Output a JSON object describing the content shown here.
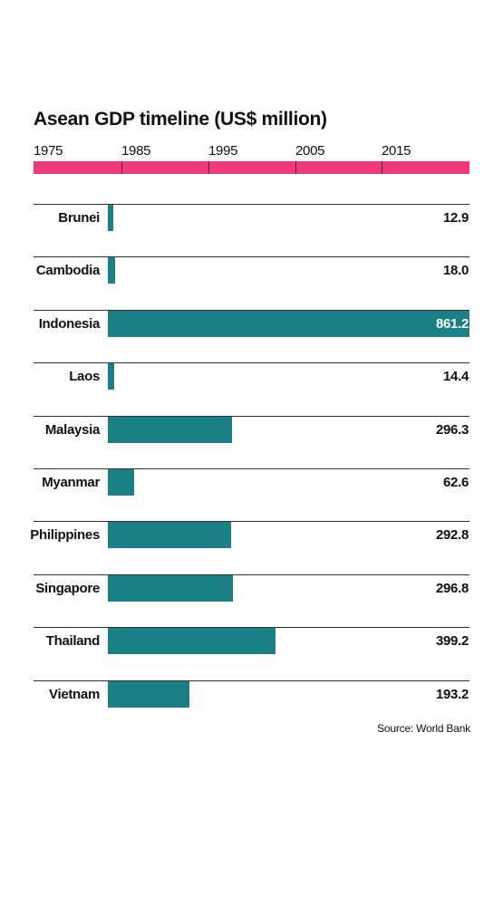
{
  "chart_data": {
    "type": "bar",
    "title": "Asean GDP timeline (US$ million)",
    "timeline_ticks": [
      "1975",
      "1985",
      "1995",
      "2005",
      "2015"
    ],
    "categories": [
      "Brunei",
      "Cambodia",
      "Indonesia",
      "Laos",
      "Malaysia",
      "Myanmar",
      "Philippines",
      "Singapore",
      "Thailand",
      "Vietnam"
    ],
    "values": [
      12.9,
      18.0,
      861.2,
      14.4,
      296.3,
      62.6,
      292.8,
      296.8,
      399.2,
      193.2
    ],
    "value_labels": [
      "12.9",
      "18.0",
      "861.2",
      "14.4",
      "296.3",
      "62.6",
      "292.8",
      "296.8",
      "399.2",
      "193.2"
    ],
    "xlim": [
      0,
      861.2
    ],
    "source": "Source: World Bank"
  },
  "colors": {
    "bar": "#1b7f86",
    "timeline": "#f0387c",
    "inside_label": "#ffffff",
    "outside_label": "#111111"
  }
}
